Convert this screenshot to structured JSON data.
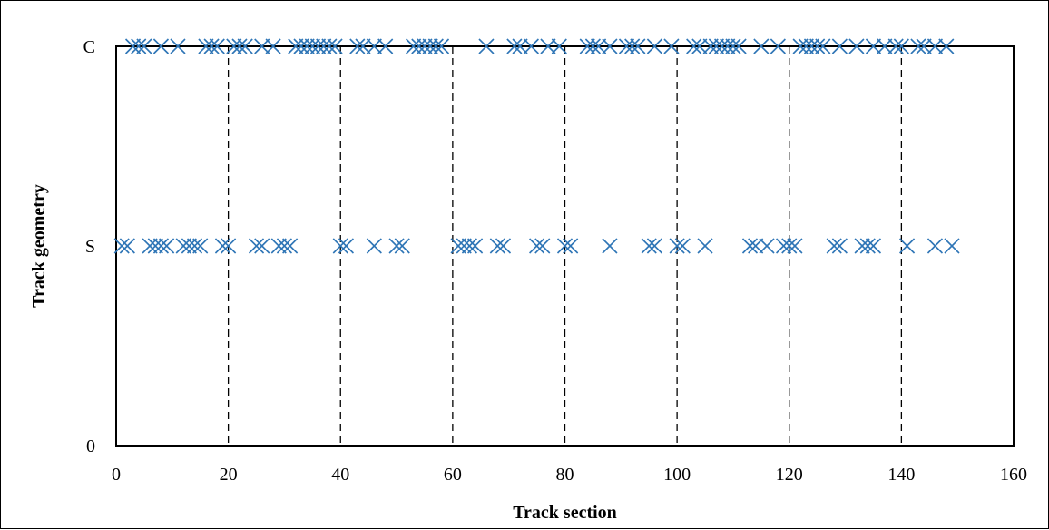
{
  "chart_data": {
    "type": "scatter",
    "xlabel": "Track section",
    "ylabel": "Track geometry",
    "xlim": [
      0,
      160
    ],
    "x_ticks": [
      0,
      20,
      40,
      60,
      80,
      100,
      120,
      140,
      160
    ],
    "y_categories": [
      "0",
      "S",
      "C"
    ],
    "vertical_dashed_lines_at": [
      20,
      40,
      60,
      80,
      100,
      120,
      140
    ],
    "marker": "x",
    "marker_color": "#2E75B6",
    "series": [
      {
        "y": "C",
        "x": [
          3,
          4,
          5,
          8,
          11,
          16,
          17,
          18,
          21,
          22,
          23,
          26,
          28,
          32,
          33,
          34,
          35,
          36,
          37,
          38,
          39,
          43,
          44,
          46,
          48,
          53,
          54,
          55,
          56,
          57,
          58,
          66,
          71,
          72,
          74,
          77,
          79,
          84,
          85,
          86,
          88,
          91,
          92,
          93,
          96,
          99,
          103,
          104,
          106,
          107,
          108,
          109,
          110,
          111,
          115,
          118,
          122,
          123,
          124,
          125,
          126,
          129,
          132,
          135,
          137,
          139,
          140,
          143,
          144,
          146,
          148
        ]
      },
      {
        "y": "S",
        "x": [
          1,
          2,
          6,
          7,
          8,
          9,
          12,
          13,
          14,
          15,
          19,
          20,
          25,
          26,
          29,
          30,
          31,
          40,
          41,
          46,
          50,
          51,
          61,
          62,
          63,
          64,
          68,
          69,
          75,
          76,
          80,
          81,
          88,
          95,
          96,
          100,
          101,
          105,
          113,
          114,
          116,
          119,
          120,
          121,
          128,
          129,
          133,
          134,
          135,
          141,
          146,
          149
        ]
      }
    ]
  }
}
